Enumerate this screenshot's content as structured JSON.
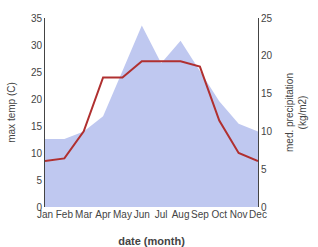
{
  "chart_data": {
    "type": "line",
    "xlabel": "date (month)",
    "ylabel": "max temp (C)",
    "y2label": "med. precipitation\n(kg/m2)",
    "categories": [
      "Jan",
      "Feb",
      "Mar",
      "Apr",
      "May",
      "Jun",
      "Jul",
      "Aug",
      "Sep",
      "Oct",
      "Nov",
      "Dec"
    ],
    "series": [
      {
        "type": "area",
        "axis": "y2",
        "color": "#bfc8f0",
        "values": [
          9,
          9,
          10,
          12,
          18,
          24,
          19,
          22,
          18,
          14,
          11,
          10
        ]
      },
      {
        "type": "line",
        "color": "#b03030",
        "values": [
          8.5,
          9,
          14,
          24,
          24,
          27,
          27,
          27,
          26,
          16,
          10,
          8.5
        ]
      }
    ],
    "ylim": [
      0,
      35
    ],
    "yticks": [
      0,
      5,
      10,
      15,
      20,
      25,
      30,
      35
    ],
    "y2lim": [
      0,
      25
    ],
    "y2ticks": [
      0,
      5,
      10,
      15,
      20,
      25
    ],
    "grid": false
  }
}
